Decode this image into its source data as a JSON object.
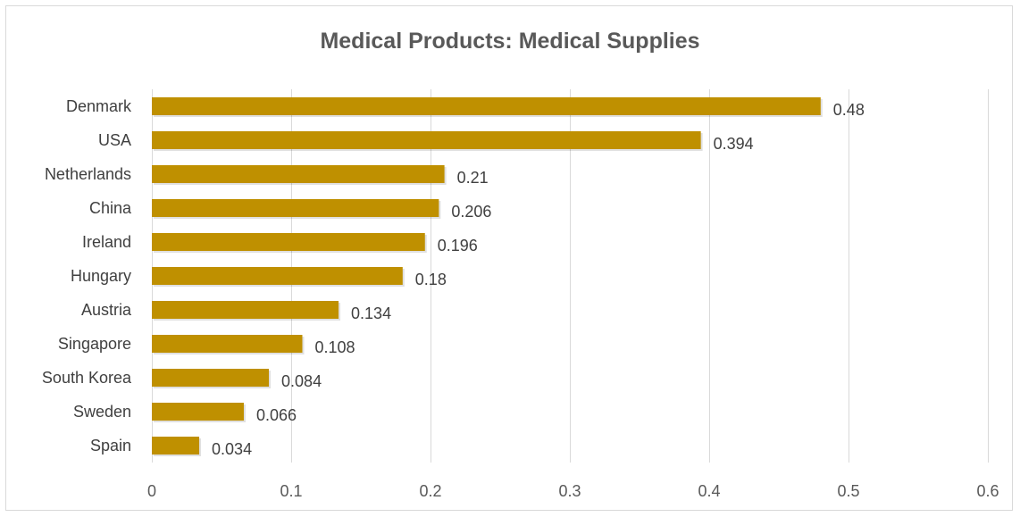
{
  "chart_data": {
    "type": "bar",
    "orientation": "horizontal",
    "title": "Medical Products: Medical Supplies",
    "categories": [
      "Denmark",
      "USA",
      "Netherlands",
      "China",
      "Ireland",
      "Hungary",
      "Austria",
      "Singapore",
      "South Korea",
      "Sweden",
      "Spain"
    ],
    "values": [
      0.48,
      0.394,
      0.21,
      0.206,
      0.196,
      0.18,
      0.134,
      0.108,
      0.084,
      0.066,
      0.034
    ],
    "value_labels": [
      "0.48",
      "0.394",
      "0.21",
      "0.206",
      "0.196",
      "0.18",
      "0.134",
      "0.108",
      "0.084",
      "0.066",
      "0.034"
    ],
    "xlabel": "",
    "ylabel": "",
    "xlim": [
      0,
      0.6
    ],
    "x_ticks": [
      0,
      0.1,
      0.2,
      0.3,
      0.4,
      0.5,
      0.6
    ],
    "x_tick_labels": [
      "0",
      "0.1",
      "0.2",
      "0.3",
      "0.4",
      "0.5",
      "0.6"
    ],
    "grid": true,
    "legend": "none",
    "colors": {
      "bar": "#bf9000",
      "gridline": "#d9d9d9",
      "text": "#404040"
    }
  }
}
